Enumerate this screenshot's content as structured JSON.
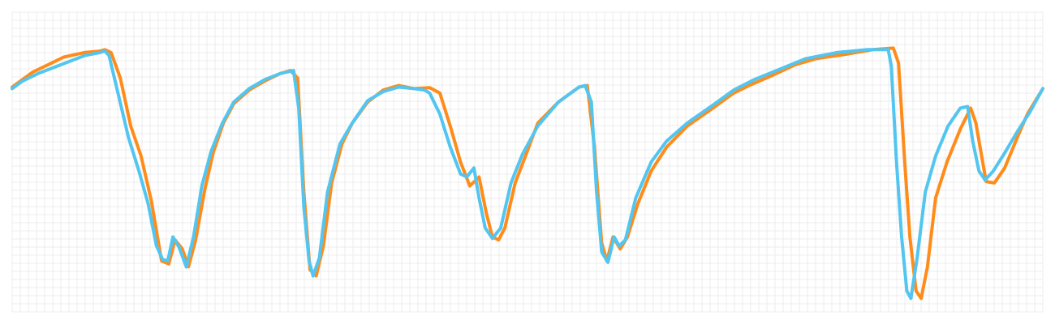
{
  "chart_data": {
    "type": "line",
    "title": "",
    "xlabel": "",
    "ylabel": "",
    "grid": true,
    "xlim": [
      0,
      100
    ],
    "ylim": [
      0,
      100
    ],
    "series": [
      {
        "color": "#ff8c1a",
        "points": [
          [
            0.0,
            75.0
          ],
          [
            1.0,
            77.5
          ],
          [
            2.0,
            80.0
          ],
          [
            3.5,
            82.5
          ],
          [
            5.0,
            85.0
          ],
          [
            7.0,
            86.5
          ],
          [
            8.5,
            87.0
          ],
          [
            9.0,
            87.5
          ],
          [
            9.6,
            86.5
          ],
          [
            10.5,
            78.0
          ],
          [
            11.5,
            62.0
          ],
          [
            12.5,
            52.0
          ],
          [
            13.5,
            37.0
          ],
          [
            14.0,
            27.0
          ],
          [
            14.5,
            17.0
          ],
          [
            15.2,
            16.0
          ],
          [
            15.8,
            24.0
          ],
          [
            16.5,
            21.0
          ],
          [
            17.1,
            15.0
          ],
          [
            17.8,
            24.0
          ],
          [
            18.7,
            41.0
          ],
          [
            19.5,
            53.0
          ],
          [
            20.5,
            63.0
          ],
          [
            21.5,
            69.5
          ],
          [
            23.0,
            74.0
          ],
          [
            24.5,
            77.0
          ],
          [
            26.0,
            79.5
          ],
          [
            27.0,
            80.5
          ],
          [
            27.7,
            78.0
          ],
          [
            28.3,
            40.0
          ],
          [
            28.9,
            14.0
          ],
          [
            29.5,
            12.0
          ],
          [
            30.2,
            22.0
          ],
          [
            31.0,
            43.0
          ],
          [
            32.0,
            56.0
          ],
          [
            33.0,
            63.0
          ],
          [
            34.5,
            70.0
          ],
          [
            36.0,
            74.0
          ],
          [
            37.5,
            75.5
          ],
          [
            39.0,
            74.5
          ],
          [
            40.5,
            74.8
          ],
          [
            41.5,
            73.0
          ],
          [
            42.5,
            62.0
          ],
          [
            43.5,
            50.0
          ],
          [
            44.4,
            42.0
          ],
          [
            45.3,
            45.0
          ],
          [
            46.0,
            33.0
          ],
          [
            46.6,
            25.0
          ],
          [
            47.2,
            24.0
          ],
          [
            47.8,
            28.0
          ],
          [
            48.8,
            43.0
          ],
          [
            49.8,
            52.0
          ],
          [
            51.0,
            63.0
          ],
          [
            53.0,
            70.0
          ],
          [
            55.0,
            75.0
          ],
          [
            55.8,
            75.5
          ],
          [
            56.5,
            55.0
          ],
          [
            57.2,
            23.0
          ],
          [
            57.7,
            17.0
          ],
          [
            58.3,
            25.0
          ],
          [
            59.0,
            21.0
          ],
          [
            59.7,
            25.0
          ],
          [
            60.7,
            36.0
          ],
          [
            62.0,
            47.0
          ],
          [
            63.5,
            55.0
          ],
          [
            65.5,
            62.0
          ],
          [
            68.0,
            68.0
          ],
          [
            70.0,
            73.0
          ],
          [
            71.5,
            75.5
          ],
          [
            73.5,
            78.5
          ],
          [
            76.0,
            82.5
          ],
          [
            78.0,
            84.5
          ],
          [
            81.0,
            86.0
          ],
          [
            83.5,
            87.5
          ],
          [
            85.5,
            88.0
          ],
          [
            86.0,
            83.0
          ],
          [
            86.6,
            50.0
          ],
          [
            87.1,
            25.0
          ],
          [
            87.7,
            7.0
          ],
          [
            88.2,
            4.5
          ],
          [
            88.8,
            15.0
          ],
          [
            89.6,
            38.0
          ],
          [
            90.7,
            50.0
          ],
          [
            92.0,
            61.0
          ],
          [
            93.0,
            68.0
          ],
          [
            93.5,
            63.0
          ],
          [
            94.5,
            43.5
          ],
          [
            95.3,
            43.0
          ],
          [
            96.3,
            48.0
          ],
          [
            97.5,
            58.0
          ],
          [
            98.5,
            66.0
          ],
          [
            100.0,
            74.5
          ]
        ]
      },
      {
        "color": "#52c5f0",
        "points": [
          [
            0.0,
            74.5
          ],
          [
            1.0,
            77.0
          ],
          [
            2.5,
            79.5
          ],
          [
            4.0,
            81.5
          ],
          [
            5.5,
            83.5
          ],
          [
            7.0,
            85.5
          ],
          [
            8.5,
            86.5
          ],
          [
            9.0,
            87.0
          ],
          [
            9.4,
            85.5
          ],
          [
            10.2,
            74.0
          ],
          [
            11.3,
            58.0
          ],
          [
            12.3,
            47.0
          ],
          [
            13.2,
            36.0
          ],
          [
            14.0,
            22.0
          ],
          [
            14.6,
            17.5
          ],
          [
            15.1,
            17.0
          ],
          [
            15.6,
            25.0
          ],
          [
            16.2,
            21.5
          ],
          [
            16.9,
            15.0
          ],
          [
            17.6,
            25.0
          ],
          [
            18.4,
            42.0
          ],
          [
            19.3,
            53.5
          ],
          [
            20.4,
            63.0
          ],
          [
            21.5,
            70.0
          ],
          [
            23.0,
            74.5
          ],
          [
            24.5,
            77.5
          ],
          [
            26.0,
            79.5
          ],
          [
            27.3,
            80.5
          ],
          [
            27.8,
            68.0
          ],
          [
            28.3,
            35.0
          ],
          [
            28.8,
            17.0
          ],
          [
            29.2,
            12.0
          ],
          [
            29.8,
            18.0
          ],
          [
            30.6,
            40.0
          ],
          [
            31.8,
            56.0
          ],
          [
            33.0,
            63.0
          ],
          [
            34.5,
            70.5
          ],
          [
            36.0,
            73.5
          ],
          [
            37.5,
            75.0
          ],
          [
            39.0,
            74.5
          ],
          [
            40.0,
            74.0
          ],
          [
            40.5,
            73.0
          ],
          [
            41.5,
            66.0
          ],
          [
            42.5,
            55.0
          ],
          [
            43.5,
            46.0
          ],
          [
            44.1,
            45.0
          ],
          [
            44.8,
            48.0
          ],
          [
            45.3,
            38.0
          ],
          [
            45.9,
            28.0
          ],
          [
            46.6,
            24.5
          ],
          [
            47.4,
            28.0
          ],
          [
            48.4,
            43.0
          ],
          [
            49.5,
            52.5
          ],
          [
            51.0,
            62.0
          ],
          [
            53.0,
            70.0
          ],
          [
            55.0,
            75.0
          ],
          [
            55.6,
            75.5
          ],
          [
            56.2,
            70.0
          ],
          [
            56.7,
            40.0
          ],
          [
            57.2,
            20.0
          ],
          [
            57.8,
            16.5
          ],
          [
            58.4,
            25.0
          ],
          [
            58.9,
            22.0
          ],
          [
            59.5,
            24.0
          ],
          [
            60.5,
            38.0
          ],
          [
            62.0,
            50.0
          ],
          [
            63.5,
            57.0
          ],
          [
            65.5,
            63.0
          ],
          [
            68.0,
            69.0
          ],
          [
            70.0,
            74.0
          ],
          [
            72.0,
            77.5
          ],
          [
            74.5,
            81.0
          ],
          [
            77.0,
            84.5
          ],
          [
            80.0,
            86.5
          ],
          [
            83.0,
            87.5
          ],
          [
            85.0,
            87.5
          ],
          [
            85.3,
            82.0
          ],
          [
            85.8,
            50.0
          ],
          [
            86.3,
            25.0
          ],
          [
            86.8,
            7.0
          ],
          [
            87.2,
            4.5
          ],
          [
            87.8,
            18.0
          ],
          [
            88.6,
            40.0
          ],
          [
            89.6,
            52.0
          ],
          [
            90.8,
            62.0
          ],
          [
            92.0,
            68.0
          ],
          [
            92.7,
            68.5
          ],
          [
            93.2,
            57.0
          ],
          [
            93.8,
            47.0
          ],
          [
            94.4,
            44.0
          ],
          [
            95.2,
            47.0
          ],
          [
            96.3,
            53.0
          ],
          [
            97.5,
            60.0
          ],
          [
            98.8,
            67.0
          ],
          [
            100.0,
            74.5
          ]
        ]
      }
    ]
  }
}
